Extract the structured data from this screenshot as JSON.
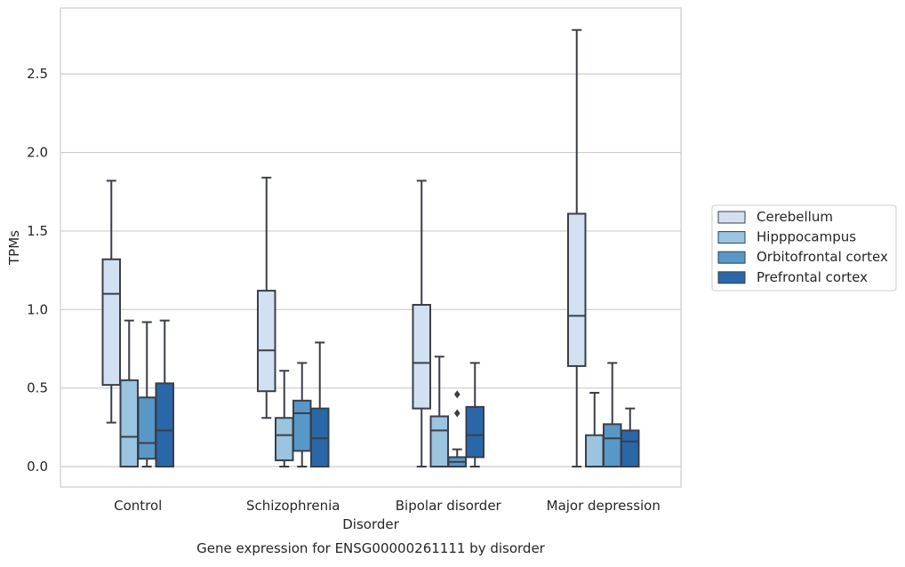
{
  "chart_data": {
    "type": "box",
    "categories": [
      "Control",
      "Schizophrenia",
      "Bipolar disorder",
      "Major depression"
    ],
    "xlabel": "Disorder",
    "ylabel": "TPMs",
    "caption": "Gene expression for ENSG00000261111 by disorder",
    "ylim": [
      -0.13,
      2.92
    ],
    "yticks": [
      0.0,
      0.5,
      1.0,
      1.5,
      2.0,
      2.5
    ],
    "ytick_labels": [
      "0.0",
      "0.5",
      "1.0",
      "1.5",
      "2.0",
      "2.5"
    ],
    "grid": true,
    "legend_position": "right",
    "series": [
      {
        "name": "Cerebellum",
        "color": "#d2e1f1",
        "boxes": [
          {
            "whisker_low": 0.28,
            "q1": 0.52,
            "median": 1.1,
            "q3": 1.32,
            "whisker_high": 1.82,
            "outliers": []
          },
          {
            "whisker_low": 0.31,
            "q1": 0.48,
            "median": 0.74,
            "q3": 1.12,
            "whisker_high": 1.84,
            "outliers": []
          },
          {
            "whisker_low": 0.0,
            "q1": 0.37,
            "median": 0.66,
            "q3": 1.03,
            "whisker_high": 1.82,
            "outliers": []
          },
          {
            "whisker_low": 0.0,
            "q1": 0.64,
            "median": 0.96,
            "q3": 1.61,
            "whisker_high": 2.78,
            "outliers": []
          }
        ]
      },
      {
        "name": "Hipppocampus",
        "color": "#9ac4df",
        "boxes": [
          {
            "whisker_low": 0.0,
            "q1": 0.0,
            "median": 0.19,
            "q3": 0.55,
            "whisker_high": 0.93,
            "outliers": []
          },
          {
            "whisker_low": 0.0,
            "q1": 0.04,
            "median": 0.2,
            "q3": 0.31,
            "whisker_high": 0.61,
            "outliers": []
          },
          {
            "whisker_low": 0.0,
            "q1": 0.0,
            "median": 0.23,
            "q3": 0.32,
            "whisker_high": 0.7,
            "outliers": []
          },
          {
            "whisker_low": 0.0,
            "q1": 0.0,
            "median": 0.0,
            "q3": 0.2,
            "whisker_high": 0.47,
            "outliers": []
          }
        ]
      },
      {
        "name": "Orbitofrontal cortex",
        "color": "#5898c9",
        "boxes": [
          {
            "whisker_low": 0.0,
            "q1": 0.05,
            "median": 0.15,
            "q3": 0.44,
            "whisker_high": 0.92,
            "outliers": []
          },
          {
            "whisker_low": 0.0,
            "q1": 0.1,
            "median": 0.34,
            "q3": 0.42,
            "whisker_high": 0.66,
            "outliers": []
          },
          {
            "whisker_low": 0.0,
            "q1": 0.0,
            "median": 0.03,
            "q3": 0.06,
            "whisker_high": 0.11,
            "outliers": [
              0.34,
              0.46
            ]
          },
          {
            "whisker_low": 0.0,
            "q1": 0.0,
            "median": 0.18,
            "q3": 0.27,
            "whisker_high": 0.66,
            "outliers": []
          }
        ]
      },
      {
        "name": "Prefrontal cortex",
        "color": "#2967a8",
        "boxes": [
          {
            "whisker_low": 0.0,
            "q1": 0.0,
            "median": 0.23,
            "q3": 0.53,
            "whisker_high": 0.93,
            "outliers": []
          },
          {
            "whisker_low": 0.0,
            "q1": 0.0,
            "median": 0.18,
            "q3": 0.37,
            "whisker_high": 0.79,
            "outliers": []
          },
          {
            "whisker_low": 0.0,
            "q1": 0.06,
            "median": 0.2,
            "q3": 0.38,
            "whisker_high": 0.66,
            "outliers": []
          },
          {
            "whisker_low": 0.0,
            "q1": 0.0,
            "median": 0.16,
            "q3": 0.23,
            "whisker_high": 0.37,
            "outliers": []
          }
        ]
      }
    ]
  }
}
